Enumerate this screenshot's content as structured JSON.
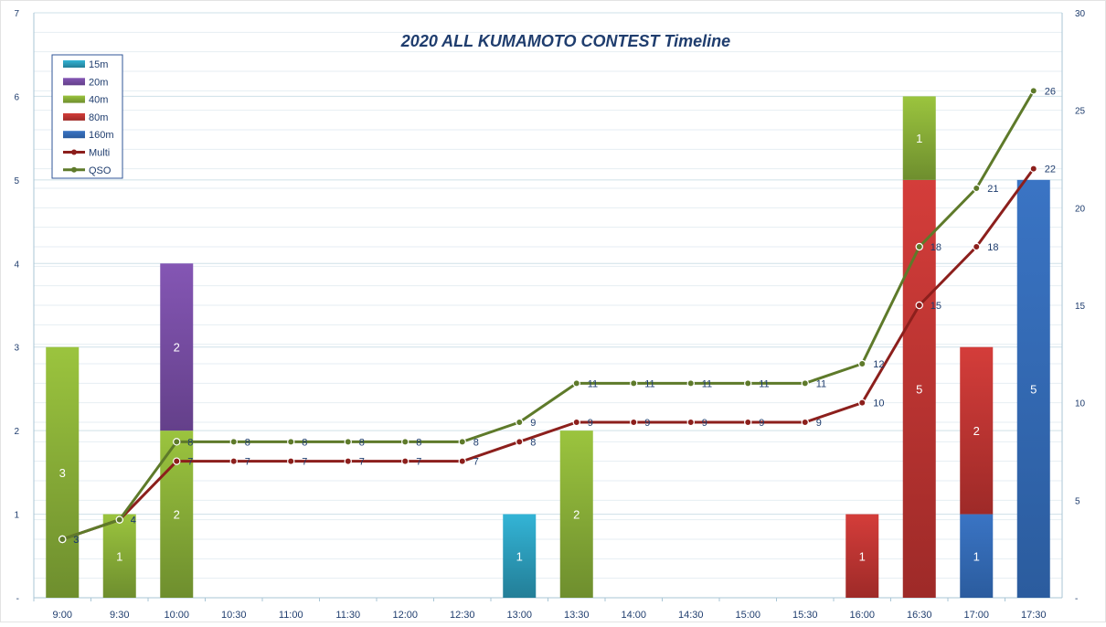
{
  "chart_data": {
    "type": "bar",
    "title": "2020 ALL KUMAMOTO CONTEST Timeline",
    "categories": [
      "9:00",
      "9:30",
      "10:00",
      "10:30",
      "11:00",
      "11:30",
      "12:00",
      "12:30",
      "13:00",
      "13:30",
      "14:00",
      "14:30",
      "15:00",
      "15:30",
      "16:00",
      "16:30",
      "17:00",
      "17:30"
    ],
    "stacked": true,
    "legend_position": "top-left",
    "grid": true,
    "y_left": {
      "min": 0,
      "max": 7,
      "ticks": [
        "-",
        "1",
        "2",
        "3",
        "4",
        "5",
        "6",
        "7"
      ]
    },
    "y_right": {
      "min": 0,
      "max": 30,
      "ticks": [
        "-",
        "5",
        "10",
        "15",
        "20",
        "25",
        "30"
      ]
    },
    "series": [
      {
        "name": "160m",
        "kind": "bar",
        "color": "#3A74C4",
        "dark": "#2B5C9E",
        "values": [
          0,
          0,
          0,
          0,
          0,
          0,
          0,
          0,
          0,
          0,
          0,
          0,
          0,
          0,
          0,
          0,
          1,
          5
        ]
      },
      {
        "name": "80m",
        "kind": "bar",
        "color": "#D43D3A",
        "dark": "#9E2A28",
        "values": [
          0,
          0,
          0,
          0,
          0,
          0,
          0,
          0,
          0,
          0,
          0,
          0,
          0,
          0,
          1,
          5,
          2,
          0
        ]
      },
      {
        "name": "40m",
        "kind": "bar",
        "color": "#9BC43E",
        "dark": "#6E8E2E",
        "values": [
          3,
          1,
          2,
          0,
          0,
          0,
          0,
          0,
          0,
          2,
          0,
          0,
          0,
          0,
          0,
          1,
          0,
          0
        ]
      },
      {
        "name": "20m",
        "kind": "bar",
        "color": "#8456B4",
        "dark": "#64408A",
        "values": [
          0,
          0,
          2,
          0,
          0,
          0,
          0,
          0,
          0,
          0,
          0,
          0,
          0,
          0,
          0,
          0,
          0,
          0
        ]
      },
      {
        "name": "15m",
        "kind": "bar",
        "color": "#33B4D6",
        "dark": "#237E97",
        "values": [
          0,
          0,
          0,
          0,
          0,
          0,
          0,
          0,
          1,
          0,
          0,
          0,
          0,
          0,
          0,
          0,
          0,
          0
        ]
      },
      {
        "name": "Multi",
        "kind": "line",
        "axis": "right",
        "color": "#8C1F1C",
        "values": [
          3,
          4,
          7,
          7,
          7,
          7,
          7,
          7,
          8,
          9,
          9,
          9,
          9,
          9,
          10,
          15,
          18,
          22
        ]
      },
      {
        "name": "QSO",
        "kind": "line",
        "axis": "right",
        "color": "#5E7A2A",
        "values": [
          3,
          4,
          8,
          8,
          8,
          8,
          8,
          8,
          9,
          11,
          11,
          11,
          11,
          11,
          12,
          18,
          21,
          26
        ]
      }
    ],
    "legend_order": [
      "15m",
      "20m",
      "40m",
      "80m",
      "160m",
      "Multi",
      "QSO"
    ]
  }
}
